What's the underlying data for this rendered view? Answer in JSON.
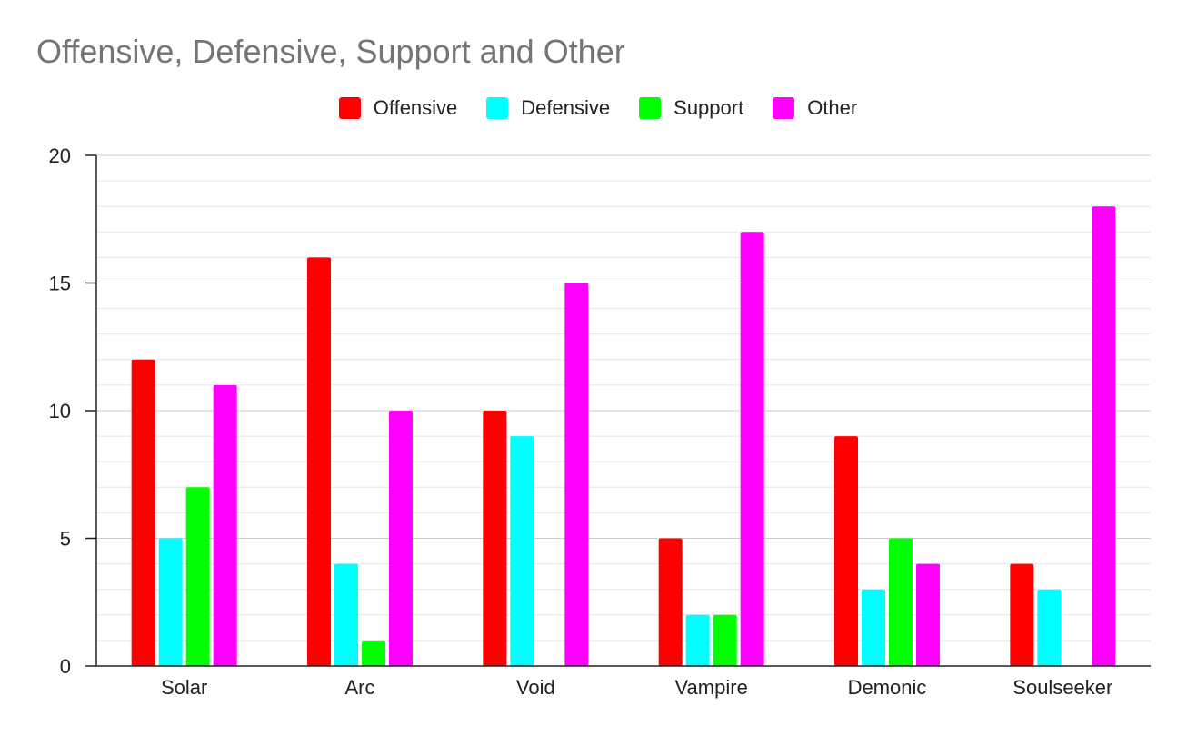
{
  "chart_data": {
    "type": "bar",
    "title": "Offensive, Defensive, Support and Other",
    "xlabel": "",
    "ylabel": "",
    "categories": [
      "Solar",
      "Arc",
      "Void",
      "Vampire",
      "Demonic",
      "Soulseeker"
    ],
    "series": [
      {
        "name": "Offensive",
        "color": "#ff0000",
        "values": [
          12,
          16,
          10,
          5,
          9,
          4
        ]
      },
      {
        "name": "Defensive",
        "color": "#00ffff",
        "values": [
          5,
          4,
          9,
          2,
          3,
          3
        ]
      },
      {
        "name": "Support",
        "color": "#00ff00",
        "values": [
          7,
          1,
          0,
          2,
          5,
          0
        ]
      },
      {
        "name": "Other",
        "color": "#ff00ff",
        "values": [
          11,
          10,
          15,
          17,
          4,
          18
        ]
      }
    ],
    "ylim": [
      0,
      20
    ],
    "yticks": [
      0,
      5,
      10,
      15,
      20
    ],
    "grid": true,
    "legend_position": "top"
  }
}
